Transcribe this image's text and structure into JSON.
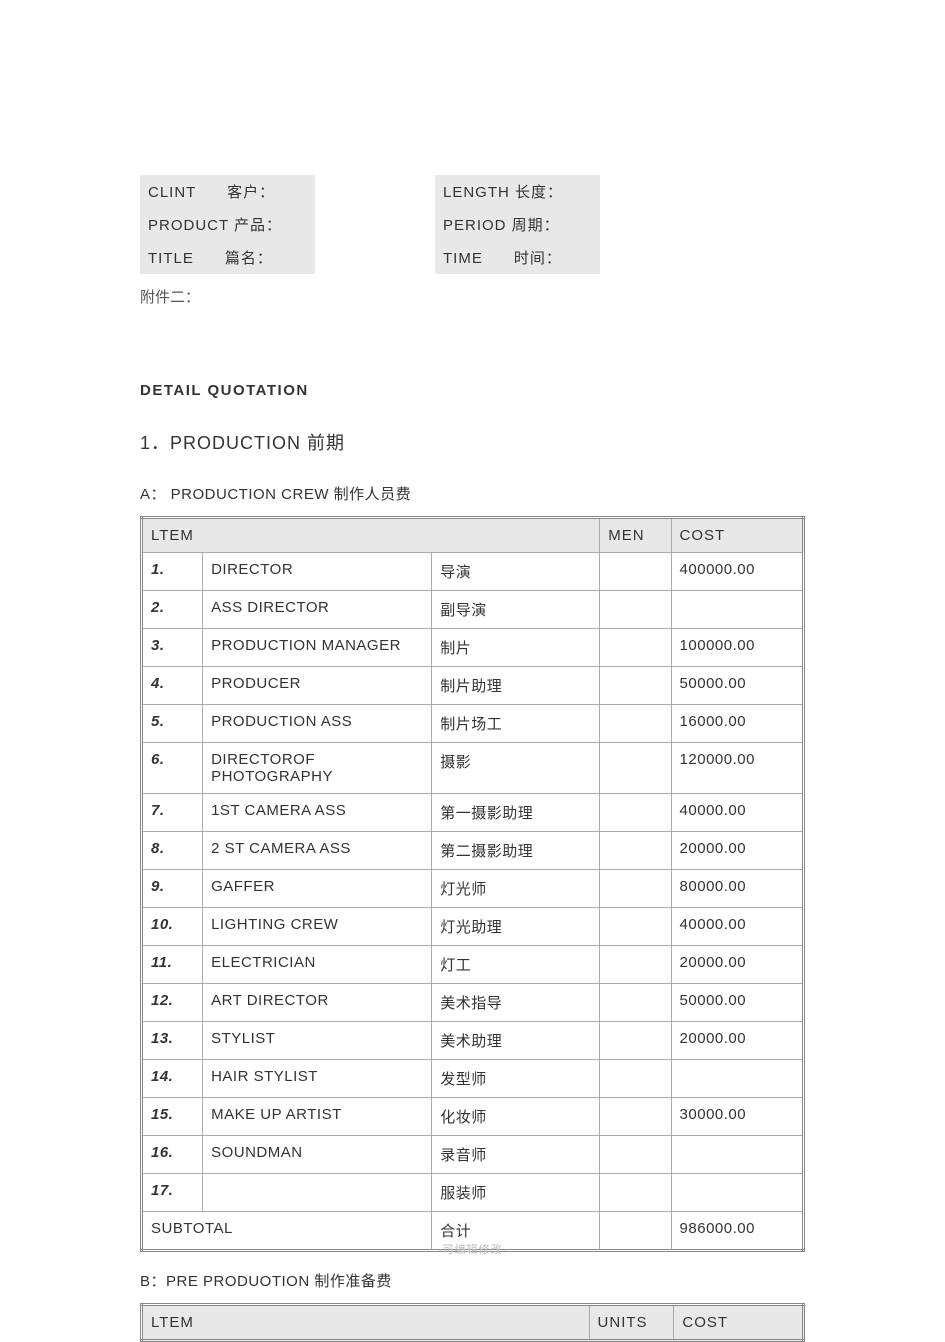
{
  "header": {
    "left": [
      {
        "label": "CLINT      客户："
      },
      {
        "label": "PRODUCT 产品："
      },
      {
        "label": "TITLE      篇名："
      }
    ],
    "right": [
      {
        "label": "LENGTH 长度："
      },
      {
        "label": "PERIOD 周期："
      },
      {
        "label": "TIME      时间："
      }
    ]
  },
  "appendix": "附件二：",
  "detail_title": "DETAIL  QUOTATION",
  "section1_title": "1．PRODUCTION     前期",
  "sectionA_title": "A： PRODUCTION CREW    制作人员费",
  "tableA": {
    "columns": {
      "ltem": "LTEM",
      "men": "MEN",
      "cost": "COST"
    },
    "rows": [
      {
        "n": "1.",
        "en": "DIRECTOR",
        "cn": "导演",
        "men": "",
        "cost": "400000.00"
      },
      {
        "n": "2.",
        "en": "ASS DIRECTOR",
        "cn": "副导演",
        "men": "",
        "cost": ""
      },
      {
        "n": "3.",
        "en": "PRODUCTION   MANAGER",
        "cn": "制片",
        "men": "",
        "cost": "100000.00"
      },
      {
        "n": "4.",
        "en": "PRODUCER",
        "cn": "制片助理",
        "men": "",
        "cost": "50000.00"
      },
      {
        "n": "5.",
        "en": "PRODUCTION ASS",
        "cn": "制片场工",
        "men": "",
        "cost": "16000.00"
      },
      {
        "n": "6.",
        "en": "DIRECTOROF PHOTOGRAPHY",
        "cn": "摄影",
        "men": "",
        "cost": "120000.00"
      },
      {
        "n": "7.",
        "en": "1ST CAMERA ASS",
        "cn": "第一摄影助理",
        "men": "",
        "cost": "40000.00"
      },
      {
        "n": "8.",
        "en": "2 ST CAMERA ASS",
        "cn": "第二摄影助理",
        "men": "",
        "cost": "20000.00"
      },
      {
        "n": "9.",
        "en": "GAFFER",
        "cn": "灯光师",
        "men": "",
        "cost": "80000.00"
      },
      {
        "n": "10.",
        "en": "LIGHTING CREW",
        "cn": "灯光助理",
        "men": "",
        "cost": "40000.00"
      },
      {
        "n": "11.",
        "en": "ELECTRICIAN",
        "cn": "灯工",
        "men": "",
        "cost": "20000.00"
      },
      {
        "n": "12.",
        "en": "ART DIRECTOR",
        "cn": "美术指导",
        "men": "",
        "cost": "50000.00"
      },
      {
        "n": "13.",
        "en": "STYLIST",
        "cn": "美术助理",
        "men": "",
        "cost": "20000.00"
      },
      {
        "n": "14.",
        "en": "HAIR STYLIST",
        "cn": "发型师",
        "men": "",
        "cost": ""
      },
      {
        "n": "15.",
        "en": "MAKE UP ARTIST",
        "cn": "化妆师",
        "men": "",
        "cost": "30000.00"
      },
      {
        "n": "16.",
        "en": "SOUNDMAN",
        "cn": "录音师",
        "men": "",
        "cost": ""
      },
      {
        "n": "17.",
        "en": "",
        "cn": "服装师",
        "men": "",
        "cost": ""
      }
    ],
    "subtotal": {
      "label_en": "SUBTOTAL",
      "label_cn": "合计",
      "men": "",
      "cost": "986000.00"
    }
  },
  "sectionB_title": "B：PRE PRODUOTION 制作准备费",
  "tableB": {
    "columns": {
      "ltem": "LTEM",
      "units": "UNITS",
      "cost": "COST"
    }
  },
  "footer_note": "-可编辑修改-",
  "styling": {
    "page_bg": "#ffffff",
    "text_color": "#333333",
    "header_bg": "#e8e8e8",
    "table_border": "#888888",
    "cell_border": "#aaaaaa",
    "footer_color": "#bbbbbb",
    "font_size_body": 15,
    "font_size_section": 18,
    "font_size_footer": 11
  }
}
